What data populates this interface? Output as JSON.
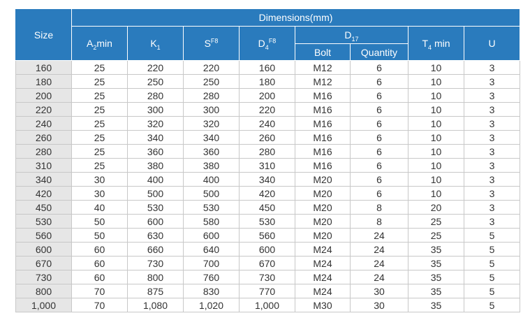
{
  "header": {
    "size": "Size",
    "dimensions": "Dimensions(mm)",
    "a2min": {
      "base": "A",
      "sub": "2",
      "suffix": "min"
    },
    "k1": {
      "base": "K",
      "sub": "1"
    },
    "s": {
      "base": "S",
      "sup": "F8"
    },
    "d4": {
      "base": "D",
      "sub": "4",
      "sup": "F8"
    },
    "d17": {
      "base": "D",
      "sub": "17"
    },
    "bolt": "Bolt",
    "quantity": "Quantity",
    "t4min": {
      "base": "T",
      "sub": "4",
      "suffix": " min"
    },
    "u": "U"
  },
  "rows": [
    {
      "size": "160",
      "a2": "25",
      "k1": "220",
      "s": "220",
      "d4": "160",
      "bolt": "M12",
      "qty": "6",
      "t4": "10",
      "u": "3"
    },
    {
      "size": "180",
      "a2": "25",
      "k1": "250",
      "s": "250",
      "d4": "180",
      "bolt": "M12",
      "qty": "6",
      "t4": "10",
      "u": "3"
    },
    {
      "size": "200",
      "a2": "25",
      "k1": "280",
      "s": "280",
      "d4": "200",
      "bolt": "M16",
      "qty": "6",
      "t4": "10",
      "u": "3"
    },
    {
      "size": "220",
      "a2": "25",
      "k1": "300",
      "s": "300",
      "d4": "220",
      "bolt": "M16",
      "qty": "6",
      "t4": "10",
      "u": "3"
    },
    {
      "size": "240",
      "a2": "25",
      "k1": "320",
      "s": "320",
      "d4": "240",
      "bolt": "M16",
      "qty": "6",
      "t4": "10",
      "u": "3"
    },
    {
      "size": "260",
      "a2": "25",
      "k1": "340",
      "s": "340",
      "d4": "260",
      "bolt": "M16",
      "qty": "6",
      "t4": "10",
      "u": "3"
    },
    {
      "size": "280",
      "a2": "25",
      "k1": "360",
      "s": "360",
      "d4": "280",
      "bolt": "M16",
      "qty": "6",
      "t4": "10",
      "u": "3"
    },
    {
      "size": "310",
      "a2": "25",
      "k1": "380",
      "s": "380",
      "d4": "310",
      "bolt": "M16",
      "qty": "6",
      "t4": "10",
      "u": "3"
    },
    {
      "size": "340",
      "a2": "30",
      "k1": "400",
      "s": "400",
      "d4": "340",
      "bolt": "M20",
      "qty": "6",
      "t4": "10",
      "u": "3"
    },
    {
      "size": "420",
      "a2": "30",
      "k1": "500",
      "s": "500",
      "d4": "420",
      "bolt": "M20",
      "qty": "6",
      "t4": "10",
      "u": "3"
    },
    {
      "size": "450",
      "a2": "40",
      "k1": "530",
      "s": "530",
      "d4": "450",
      "bolt": "M20",
      "qty": "8",
      "t4": "20",
      "u": "3"
    },
    {
      "size": "530",
      "a2": "50",
      "k1": "600",
      "s": "580",
      "d4": "530",
      "bolt": "M20",
      "qty": "8",
      "t4": "25",
      "u": "3"
    },
    {
      "size": "560",
      "a2": "50",
      "k1": "630",
      "s": "600",
      "d4": "560",
      "bolt": "M20",
      "qty": "24",
      "t4": "25",
      "u": "5"
    },
    {
      "size": "600",
      "a2": "60",
      "k1": "660",
      "s": "640",
      "d4": "600",
      "bolt": "M24",
      "qty": "24",
      "t4": "35",
      "u": "5"
    },
    {
      "size": "670",
      "a2": "60",
      "k1": "730",
      "s": "700",
      "d4": "670",
      "bolt": "M24",
      "qty": "24",
      "t4": "35",
      "u": "5"
    },
    {
      "size": "730",
      "a2": "60",
      "k1": "800",
      "s": "760",
      "d4": "730",
      "bolt": "M24",
      "qty": "24",
      "t4": "35",
      "u": "5"
    },
    {
      "size": "800",
      "a2": "70",
      "k1": "875",
      "s": "830",
      "d4": "770",
      "bolt": "M24",
      "qty": "30",
      "t4": "35",
      "u": "5"
    },
    {
      "size": "1,000",
      "a2": "70",
      "k1": "1,080",
      "s": "1,020",
      "d4": "1,000",
      "bolt": "M30",
      "qty": "30",
      "t4": "35",
      "u": "5"
    }
  ]
}
